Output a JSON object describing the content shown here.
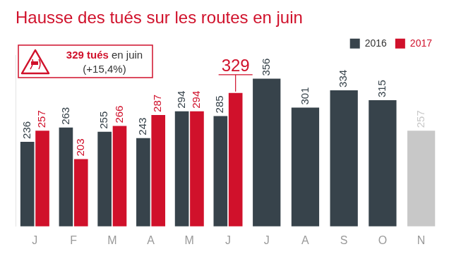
{
  "chart_data": {
    "type": "bar",
    "title": "Hausse des tués sur les routes en juin",
    "categories": [
      "J",
      "F",
      "M",
      "A",
      "M",
      "J",
      "J",
      "A",
      "S",
      "O",
      "N"
    ],
    "series": [
      {
        "name": "2016",
        "color": "#37434b",
        "colors": [
          "#37434b",
          "#37434b",
          "#37434b",
          "#37434b",
          "#37434b",
          "#37434b",
          "#37434b",
          "#37434b",
          "#37434b",
          "#37434b",
          "#c8c8c8"
        ],
        "values": [
          236,
          263,
          255,
          243,
          294,
          285,
          356,
          301,
          334,
          315,
          257
        ]
      },
      {
        "name": "2017",
        "color": "#d0112b",
        "values": [
          257,
          203,
          266,
          287,
          294,
          329,
          null,
          null,
          null,
          null,
          null
        ]
      }
    ],
    "ylim": [
      75,
      400
    ],
    "grid": false,
    "legend": "top-right",
    "data_labels": true,
    "tick_labels": "x",
    "annotations": [
      "329 tués en juin",
      "(+15,4%)"
    ]
  }
}
